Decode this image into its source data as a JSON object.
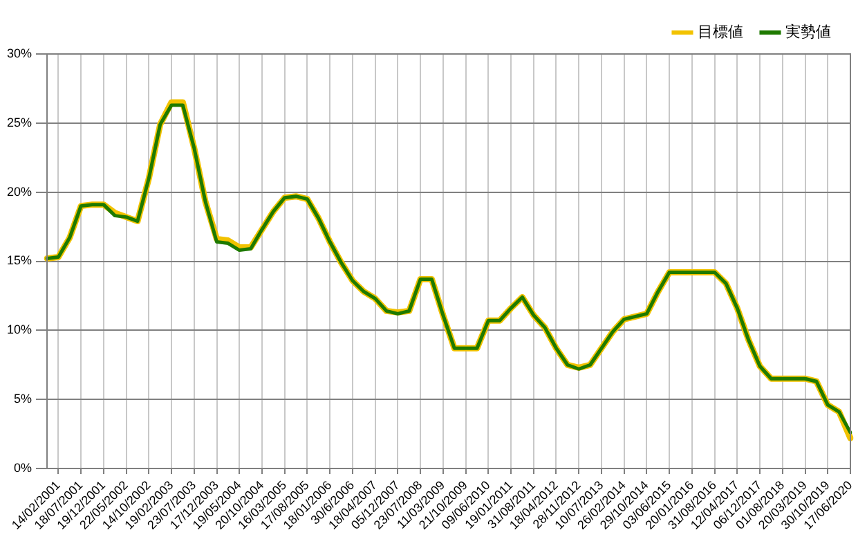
{
  "chart_data": {
    "type": "line",
    "categories": [
      null,
      "14/02/2001",
      null,
      "18/07/2001",
      null,
      "19/12/2001",
      null,
      "22/05/2002",
      null,
      "14/10/2002",
      null,
      "19/02/2003",
      null,
      "23/07/2003",
      null,
      "17/12/2003",
      null,
      "19/05/2004",
      null,
      "20/10/2004",
      null,
      "16/03/2005",
      null,
      "17/08/2005",
      null,
      "18/01/2006",
      null,
      "30/6/2006",
      null,
      "18/04/2007",
      null,
      "05/12/2007",
      null,
      "23/07/2008",
      null,
      "11/03/2009",
      null,
      "21/10/2009",
      null,
      "09/06/2010",
      null,
      "19/01/2011",
      null,
      "31/08/2011",
      null,
      "18/04/2012",
      null,
      "28/11/2012",
      null,
      "10/07/2013",
      null,
      "26/02/2014",
      null,
      "29/10/2014",
      null,
      "03/06/2015",
      null,
      "20/01/2016",
      null,
      "31/08/2016",
      null,
      "12/04/2017",
      null,
      "06/12/2017",
      null,
      "01/08/2018",
      null,
      "20/03/2019",
      null,
      "30/10/2019",
      null,
      "17/06/2020"
    ],
    "series": [
      {
        "name": "目標値",
        "color": "#f2c200",
        "values": [
          15.2,
          15.3,
          16.7,
          19.0,
          19.1,
          19.1,
          18.5,
          18.2,
          17.9,
          21.0,
          24.9,
          26.5,
          26.5,
          23.2,
          19.3,
          16.6,
          16.5,
          16.0,
          16.0,
          17.3,
          18.6,
          19.6,
          19.7,
          19.5,
          18.1,
          16.4,
          14.9,
          13.6,
          12.8,
          12.3,
          11.4,
          11.3,
          11.4,
          13.7,
          13.7,
          11.1,
          8.7,
          8.7,
          8.7,
          10.7,
          10.7,
          11.6,
          12.4,
          11.1,
          10.2,
          8.7,
          7.5,
          7.3,
          7.5,
          8.7,
          9.9,
          10.8,
          11.0,
          11.2,
          12.8,
          14.2,
          14.2,
          14.2,
          14.2,
          14.2,
          13.4,
          11.6,
          9.3,
          7.4,
          6.5,
          6.5,
          6.5,
          6.5,
          6.3,
          4.6,
          4.1,
          2.2
        ]
      },
      {
        "name": "実勢値",
        "color": "#1e7a00",
        "values": [
          15.2,
          15.3,
          16.7,
          19.0,
          19.1,
          19.1,
          18.3,
          18.2,
          17.9,
          21.0,
          24.9,
          26.3,
          26.3,
          23.2,
          19.3,
          16.4,
          16.3,
          15.8,
          15.9,
          17.3,
          18.6,
          19.6,
          19.7,
          19.5,
          18.1,
          16.4,
          14.9,
          13.6,
          12.8,
          12.3,
          11.4,
          11.2,
          11.4,
          13.7,
          13.7,
          11.1,
          8.7,
          8.7,
          8.7,
          10.7,
          10.7,
          11.6,
          12.4,
          11.1,
          10.2,
          8.7,
          7.5,
          7.2,
          7.5,
          8.7,
          9.9,
          10.8,
          11.0,
          11.2,
          12.8,
          14.2,
          14.2,
          14.2,
          14.2,
          14.2,
          13.4,
          11.6,
          9.3,
          7.4,
          6.5,
          6.5,
          6.5,
          6.5,
          6.3,
          4.6,
          4.1,
          2.6
        ]
      }
    ],
    "ylim": [
      0,
      30
    ],
    "yticks": [
      {
        "value": 0,
        "label": "0%"
      },
      {
        "value": 5,
        "label": "5%"
      },
      {
        "value": 10,
        "label": "10%"
      },
      {
        "value": 15,
        "label": "15%"
      },
      {
        "value": 20,
        "label": "20%"
      },
      {
        "value": 25,
        "label": "25%"
      },
      {
        "value": 30,
        "label": "30%"
      }
    ],
    "grid": true,
    "legend": "top right",
    "marker": "none",
    "line_style": "solid"
  }
}
